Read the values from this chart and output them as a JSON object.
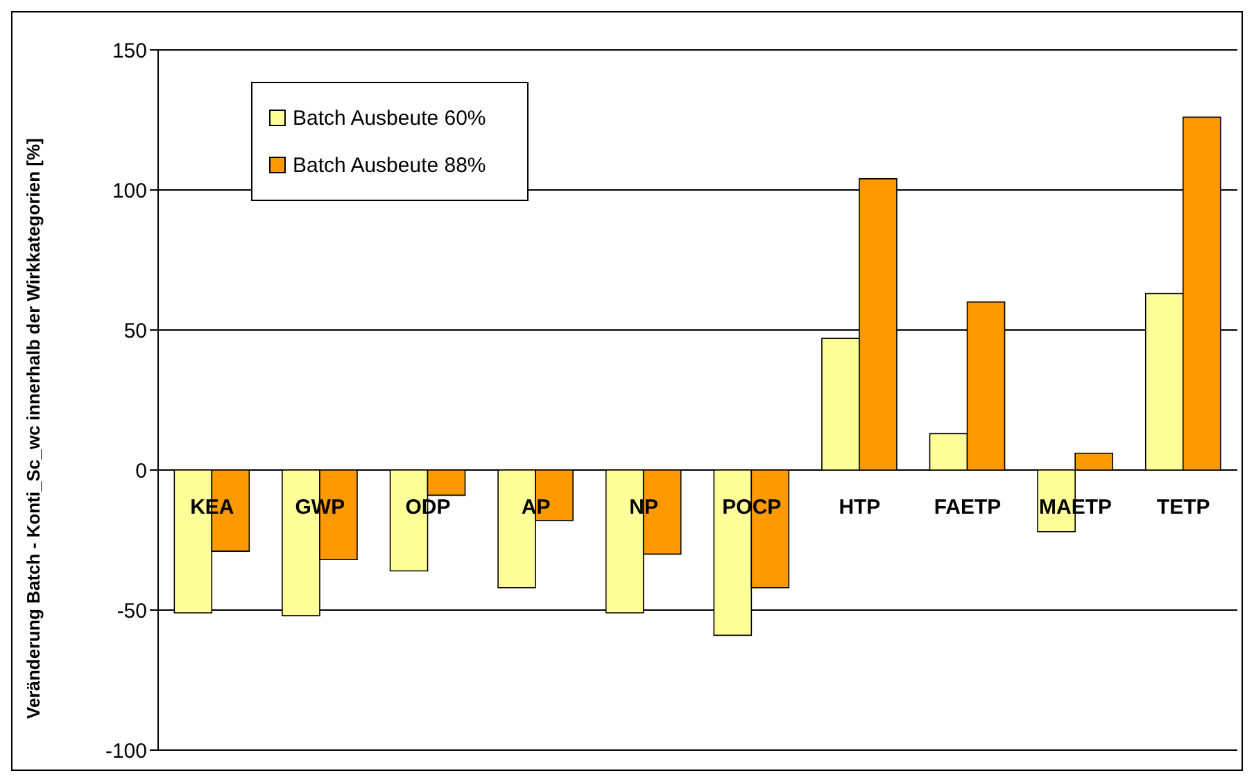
{
  "chart_data": {
    "type": "bar",
    "ylabel": "Veränderung Batch - Konti_Sc_wc innerhalb der Wirkkategorien [%]",
    "categories": [
      "KEA",
      "GWP",
      "ODP",
      "AP",
      "NP",
      "POCP",
      "HTP",
      "FAETP",
      "MAETP",
      "TETP"
    ],
    "series": [
      {
        "name": "Batch Ausbeute 60%",
        "color": "#ffff99",
        "values": [
          -51,
          -52,
          -36,
          -42,
          -51,
          -59,
          47,
          13,
          -22,
          63
        ]
      },
      {
        "name": "Batch Ausbeute 88%",
        "color": "#ff9900",
        "values": [
          -29,
          -32,
          -9,
          -18,
          -30,
          -42,
          104,
          60,
          6,
          126
        ]
      }
    ],
    "ylim": [
      -100,
      150
    ],
    "yticks": [
      -100,
      -50,
      0,
      50,
      100,
      150
    ],
    "grid": "y",
    "legend": "top left"
  }
}
